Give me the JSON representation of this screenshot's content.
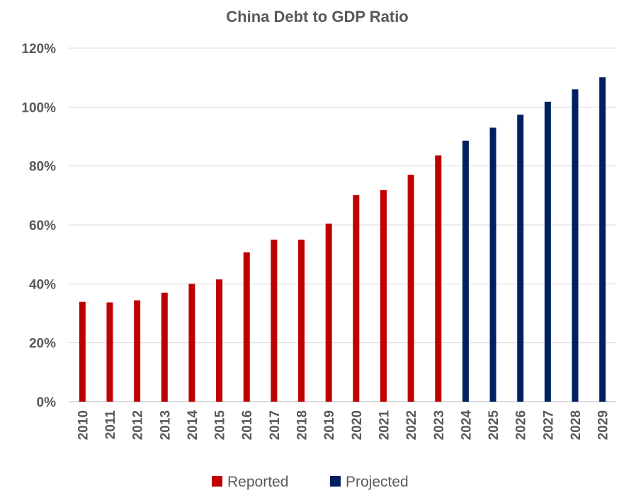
{
  "chart_data": {
    "type": "bar",
    "title": "China Debt to GDP Ratio",
    "xlabel": "",
    "ylabel": "",
    "ylim": [
      0,
      120
    ],
    "yticks": [
      "0%",
      "20%",
      "40%",
      "60%",
      "80%",
      "100%",
      "120%"
    ],
    "ytick_values": [
      0,
      20,
      40,
      60,
      80,
      100,
      120
    ],
    "grid": true,
    "legend_position": "bottom",
    "categories": [
      "2010",
      "2011",
      "2012",
      "2013",
      "2014",
      "2015",
      "2016",
      "2017",
      "2018",
      "2019",
      "2020",
      "2021",
      "2022",
      "2023",
      "2024",
      "2025",
      "2026",
      "2027",
      "2028",
      "2029"
    ],
    "series": [
      {
        "name": "Reported",
        "color": "#c00000",
        "values": [
          33.9,
          33.7,
          34.4,
          37.0,
          40.0,
          41.5,
          50.7,
          55.0,
          55.0,
          60.4,
          70.1,
          71.8,
          77.0,
          83.6,
          null,
          null,
          null,
          null,
          null,
          null
        ]
      },
      {
        "name": "Projected",
        "color": "#002060",
        "values": [
          null,
          null,
          null,
          null,
          null,
          null,
          null,
          null,
          null,
          null,
          null,
          null,
          null,
          null,
          88.6,
          93.0,
          97.4,
          101.8,
          106.0,
          110.1
        ]
      }
    ]
  }
}
